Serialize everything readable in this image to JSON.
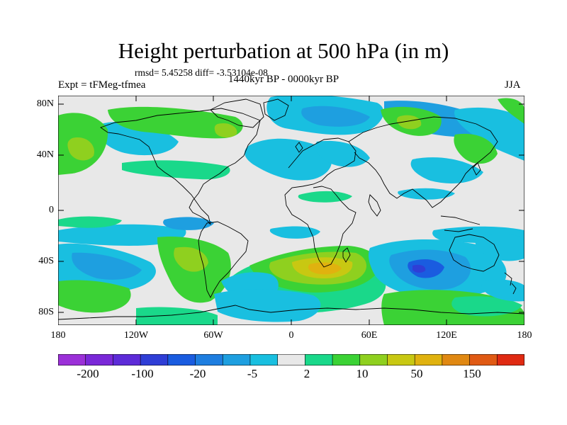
{
  "figure": {
    "title": "Height perturbation at 500 hPa (in m)",
    "stats": "rmsd= 5.45258  diff= -3.53104e-08",
    "experiment": "Expt = tFMeg-tfmea",
    "period": "1440kyr BP - 0000kyr BP",
    "season": "JJA"
  },
  "axes": {
    "lat_labels": [
      "80N",
      "40N",
      "0",
      "40S",
      "80S"
    ],
    "lon_labels": [
      "180",
      "120W",
      "60W",
      "0",
      "60E",
      "120E",
      "180"
    ]
  },
  "colorbar": {
    "colors": [
      "#9b30d8",
      "#7a28d8",
      "#5d2bd8",
      "#2f3ed6",
      "#1a5ce0",
      "#1e7ee0",
      "#1e9fe0",
      "#19bfe0",
      "#e8e8e8",
      "#1ad88a",
      "#3bd235",
      "#8fd01f",
      "#c8c812",
      "#e0b20f",
      "#e08812",
      "#e05a14",
      "#e02a12"
    ],
    "labels": [
      "-200",
      "-100",
      "-20",
      "-5",
      "2",
      "10",
      "50",
      "150"
    ]
  },
  "chart_data": {
    "type": "heatmap",
    "title": "Height perturbation at 500 hPa (in m)",
    "variable": "500 hPa geopotential height difference",
    "units": "m",
    "x_range": [
      -180,
      180
    ],
    "y_range": [
      -90,
      90
    ],
    "x_ticks": [
      -180,
      -120,
      -60,
      0,
      60,
      120,
      180
    ],
    "y_ticks": [
      80,
      40,
      0,
      -40,
      -80
    ],
    "contour_levels": [
      -200,
      -100,
      -20,
      -5,
      2,
      10,
      50,
      150
    ],
    "features": [
      {
        "region": "North Atlantic / Europe",
        "lon": -20,
        "lat": 60,
        "sign": "negative",
        "approx_m": -10
      },
      {
        "region": "Siberia",
        "lon": 40,
        "lat": 68,
        "sign": "negative",
        "approx_m": -10
      },
      {
        "region": "North America",
        "lon": -95,
        "lat": 60,
        "sign": "positive",
        "approx_m": 10
      },
      {
        "region": "North Pacific",
        "lon": -150,
        "lat": 50,
        "sign": "positive",
        "approx_m": 20
      },
      {
        "region": "Southern Africa / Indian Ocean",
        "lon": 30,
        "lat": -52,
        "sign": "positive",
        "approx_m": 50
      },
      {
        "region": "South America",
        "lon": -65,
        "lat": -42,
        "sign": "positive",
        "approx_m": 20
      },
      {
        "region": "South Indian Ocean",
        "lon": 95,
        "lat": -52,
        "sign": "negative",
        "approx_m": -20
      },
      {
        "region": "South Atlantic",
        "lon": -25,
        "lat": -62,
        "sign": "negative",
        "approx_m": -10
      }
    ]
  }
}
